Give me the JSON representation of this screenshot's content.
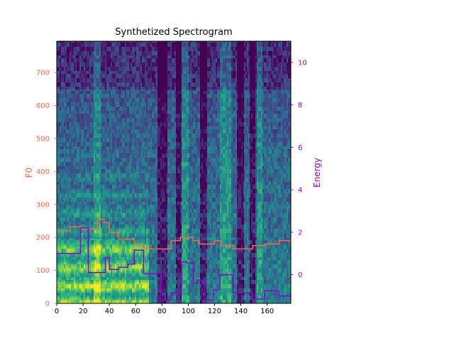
{
  "chart_data": {
    "type": "heatmap",
    "title": "Synthetized Spectrogram",
    "x_ticks": [
      "0",
      "20",
      "40",
      "60",
      "80",
      "100",
      "120",
      "140",
      "160"
    ],
    "x_tick_values": [
      0,
      20,
      40,
      60,
      80,
      100,
      120,
      140,
      160
    ],
    "xlim": [
      0,
      178
    ],
    "left_axis": {
      "label": "F0",
      "color": "#ff6347",
      "ylim": [
        0,
        795
      ],
      "ticks": [
        "0",
        "100",
        "200",
        "300",
        "400",
        "500",
        "600",
        "700"
      ],
      "tick_values": [
        0,
        100,
        200,
        300,
        400,
        500,
        600,
        700
      ]
    },
    "right_axis": {
      "label": "Energy",
      "color": "#9400d3",
      "ylim": [
        -1.35,
        11.0
      ],
      "ticks": [
        "0",
        "2",
        "4",
        "6",
        "8",
        "10"
      ],
      "tick_values": [
        0,
        2,
        4,
        6,
        8,
        10
      ]
    },
    "colormap": "viridis",
    "series": [
      {
        "axis": "left",
        "color": "#ff6347",
        "points": [
          [
            0,
            220
          ],
          [
            10,
            220
          ],
          [
            10,
            232
          ],
          [
            18,
            232
          ],
          [
            18,
            225
          ],
          [
            31,
            225
          ],
          [
            31,
            255
          ],
          [
            36,
            255
          ],
          [
            36,
            245
          ],
          [
            40,
            245
          ],
          [
            40,
            215
          ],
          [
            47,
            215
          ],
          [
            47,
            195
          ],
          [
            59,
            195
          ],
          [
            59,
            180
          ],
          [
            66,
            180
          ],
          [
            66,
            168
          ],
          [
            70,
            168
          ],
          [
            70,
            165
          ],
          [
            87,
            165
          ],
          [
            87,
            190
          ],
          [
            94,
            190
          ],
          [
            94,
            200
          ],
          [
            104,
            200
          ],
          [
            104,
            190
          ],
          [
            108,
            190
          ],
          [
            108,
            180
          ],
          [
            120,
            180
          ],
          [
            120,
            190
          ],
          [
            125,
            190
          ],
          [
            125,
            175
          ],
          [
            134,
            175
          ],
          [
            134,
            165
          ],
          [
            149,
            165
          ],
          [
            149,
            175
          ],
          [
            158,
            175
          ],
          [
            158,
            180
          ],
          [
            169,
            180
          ],
          [
            169,
            190
          ],
          [
            178,
            190
          ]
        ]
      },
      {
        "axis": "right",
        "color": "#9400d3",
        "points": [
          [
            0,
            1.0
          ],
          [
            18,
            1.0
          ],
          [
            18,
            2.2
          ],
          [
            24,
            2.2
          ],
          [
            24,
            0.1
          ],
          [
            37,
            0.1
          ],
          [
            37,
            0.8
          ],
          [
            40,
            0.8
          ],
          [
            40,
            0.25
          ],
          [
            47,
            0.25
          ],
          [
            47,
            0.35
          ],
          [
            54,
            0.35
          ],
          [
            54,
            0.5
          ],
          [
            59,
            0.5
          ],
          [
            59,
            1.15
          ],
          [
            66,
            1.15
          ],
          [
            66,
            0.05
          ],
          [
            79,
            0.05
          ],
          [
            79,
            -1.2
          ],
          [
            87,
            -1.2
          ],
          [
            87,
            -0.85
          ],
          [
            95,
            -0.85
          ],
          [
            95,
            0.6
          ],
          [
            99,
            0.6
          ],
          [
            99,
            0.55
          ],
          [
            104,
            0.55
          ],
          [
            104,
            -0.4
          ],
          [
            107,
            -0.4
          ],
          [
            107,
            -0.25
          ],
          [
            112,
            -0.25
          ],
          [
            112,
            -1.2
          ],
          [
            119,
            -1.2
          ],
          [
            119,
            -0.7
          ],
          [
            124,
            -0.7
          ],
          [
            124,
            0.0
          ],
          [
            134,
            0.0
          ],
          [
            134,
            -0.85
          ],
          [
            149,
            -0.85
          ],
          [
            149,
            -1.15
          ],
          [
            158,
            -1.15
          ],
          [
            158,
            -0.75
          ],
          [
            169,
            -0.75
          ],
          [
            169,
            -1.0
          ],
          [
            178,
            -1.0
          ]
        ]
      }
    ]
  }
}
